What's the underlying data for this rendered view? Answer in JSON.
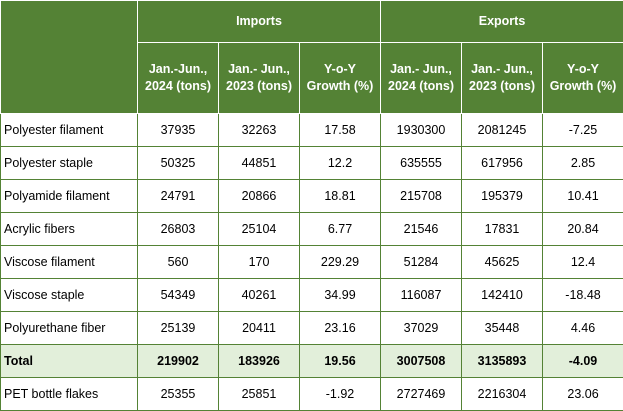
{
  "header": {
    "imports": "Imports",
    "exports": "Exports",
    "columns": [
      "Jan.-Jun., 2024 (tons)",
      "Jan.- Jun., 2023 (tons)",
      "Y-o-Y Growth (%)",
      "Jan.- Jun., 2024 (tons)",
      "Jan.- Jun., 2023 (tons)",
      "Y-o-Y Growth (%)"
    ]
  },
  "rows": [
    {
      "label": "Polyester filament",
      "values": [
        "37935",
        "32263",
        "17.58",
        "1930300",
        "2081245",
        "-7.25"
      ]
    },
    {
      "label": "Polyester staple",
      "values": [
        "50325",
        "44851",
        "12.2",
        "635555",
        "617956",
        "2.85"
      ]
    },
    {
      "label": "Polyamide filament",
      "values": [
        "24791",
        "20866",
        "18.81",
        "215708",
        "195379",
        "10.41"
      ]
    },
    {
      "label": "Acrylic fibers",
      "values": [
        "26803",
        "25104",
        "6.77",
        "21546",
        "17831",
        "20.84"
      ]
    },
    {
      "label": "Viscose filament",
      "values": [
        "560",
        "170",
        "229.29",
        "51284",
        "45625",
        "12.4"
      ]
    },
    {
      "label": "Viscose staple",
      "values": [
        "54349",
        "40261",
        "34.99",
        "116087",
        "142410",
        "-18.48"
      ]
    },
    {
      "label": "Polyurethane fiber",
      "values": [
        "25139",
        "20411",
        "23.16",
        "37029",
        "35448",
        "4.46"
      ]
    },
    {
      "label": "Total",
      "values": [
        "219902",
        "183926",
        "19.56",
        "3007508",
        "3135893",
        "-4.09"
      ]
    },
    {
      "label": "PET bottle flakes",
      "values": [
        "25355",
        "25851",
        "-1.92",
        "2727469",
        "2216304",
        "23.06"
      ]
    }
  ]
}
